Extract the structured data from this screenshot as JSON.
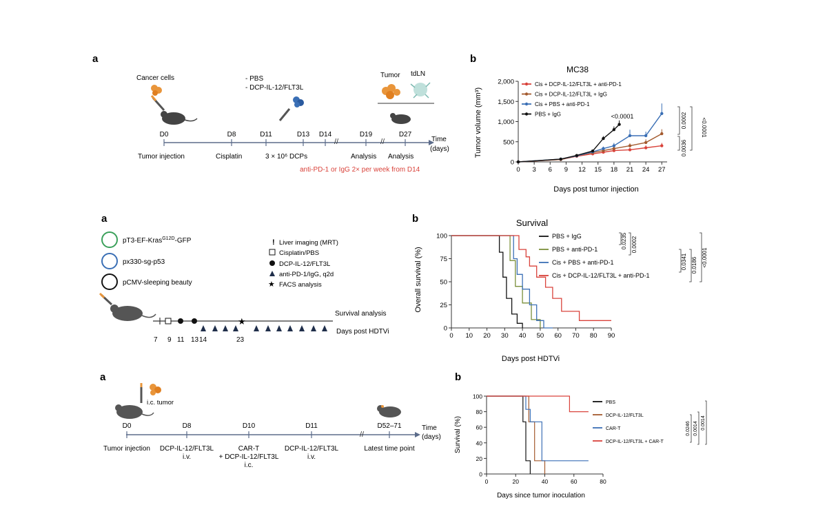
{
  "colors": {
    "red": "#d9423a",
    "brown": "#a35a2e",
    "blue": "#3a6fb5",
    "black": "#111111",
    "olive": "#7a8f3a",
    "green": "#3aa05a",
    "orange": "#e9953a",
    "teal": "#7ab8b0",
    "navy": "#1f2e4a"
  },
  "panel1": {
    "a": {
      "letter": "a",
      "cancer_label": "Cancer cells",
      "treatments": [
        "- PBS",
        "- DCP-IL-12/FLT3L"
      ],
      "tumor_label": "Tumor",
      "tdln_label": "tdLN",
      "ticks": [
        "D0",
        "D8",
        "D11",
        "D13",
        "D14",
        "D19",
        "D27"
      ],
      "axis_label": [
        "Time",
        "(days)"
      ],
      "events": [
        "Tumor injection",
        "Cisplatin",
        "3 × 10⁶ DCPs",
        "Analysis",
        "Analysis"
      ],
      "note": "anti-PD-1 or IgG 2× per week from D14"
    },
    "b": {
      "letter": "b",
      "pvals": [
        "<0.0001",
        "0.0002",
        "0.0036",
        "<0.0001"
      ]
    }
  },
  "panel2": {
    "a": {
      "letter": "a",
      "plasmids": [
        "pT3-EF-Kras",
        "G12D",
        "-GFP",
        "px330-sg-p53",
        "pCMV-sleeping beauty"
      ],
      "legend": [
        "Liver imaging (MRT)",
        "Cisplatin/PBS",
        "DCP-IL-12/FLT3L",
        "anti-PD-1/IgG, q2d",
        "FACS analysis"
      ],
      "days": [
        "7",
        "9",
        "11",
        "13",
        "14",
        "23"
      ],
      "survival_label": "Survival analysis",
      "axis_label": "Days post HDTVi"
    },
    "b": {
      "letter": "b",
      "pvals": [
        "0.0235",
        "0.0002",
        "0.0341",
        "0.0186",
        "<0.0001"
      ]
    }
  },
  "panel3": {
    "a": {
      "letter": "a",
      "tumor_label": "i.c. tumor",
      "ticks": [
        "D0",
        "D8",
        "D10",
        "D11",
        "D52–71"
      ],
      "axis_label": [
        "Time",
        "(days)"
      ],
      "events": [
        [
          "Tumor injection"
        ],
        [
          "DCP-IL-12/FLT3L",
          "i.v."
        ],
        [
          "CAR-T",
          "+ DCP-IL-12/FLT3L",
          "i.c."
        ],
        [
          "DCP-IL-12/FLT3L",
          "i.v."
        ],
        [
          "Latest time point"
        ]
      ]
    },
    "b": {
      "letter": "b",
      "pvals": [
        "0.0246",
        "0.0014",
        "0.0014"
      ]
    }
  },
  "chart_data": [
    {
      "type": "line",
      "title": "MC38",
      "xlabel": "Days post tumor injection",
      "ylabel": "Tumor volume (mm³)",
      "xlim": [
        0,
        28
      ],
      "ylim": [
        0,
        2000
      ],
      "xticks": [
        0,
        3,
        6,
        9,
        12,
        15,
        18,
        21,
        24,
        27
      ],
      "yticks": [
        0,
        500,
        1000,
        1500,
        2000
      ],
      "ytick_labels": [
        "0",
        "500",
        "1,000",
        "1,500",
        "2,000"
      ],
      "legend_position": "top-left",
      "annotation": "<0.0001",
      "series": [
        {
          "name": "Cis + DCP-IL-12/FLT3L + anti-PD-1",
          "color": "#d9423a",
          "x": [
            0,
            8,
            11,
            14,
            16,
            18,
            21,
            24,
            27
          ],
          "y": [
            0,
            60,
            140,
            200,
            240,
            280,
            300,
            350,
            400
          ],
          "err": [
            0,
            10,
            20,
            30,
            30,
            40,
            50,
            60,
            70
          ]
        },
        {
          "name": "Cis + DCP-IL-12/FLT3L + IgG",
          "color": "#a35a2e",
          "x": [
            0,
            8,
            11,
            14,
            16,
            18,
            21,
            24,
            27
          ],
          "y": [
            0,
            60,
            150,
            230,
            280,
            330,
            400,
            480,
            700
          ],
          "err": [
            0,
            10,
            20,
            30,
            40,
            50,
            60,
            80,
            110
          ]
        },
        {
          "name": "Cis + PBS + anti-PD-1",
          "color": "#3a6fb5",
          "x": [
            0,
            8,
            11,
            14,
            16,
            18,
            21,
            24,
            27
          ],
          "y": [
            0,
            70,
            150,
            250,
            330,
            400,
            650,
            650,
            1200
          ],
          "err": [
            0,
            10,
            20,
            30,
            50,
            70,
            150,
            100,
            250
          ]
        },
        {
          "name": "PBS + IgG",
          "color": "#111111",
          "x": [
            0,
            8,
            11,
            14,
            16,
            18,
            19
          ],
          "y": [
            0,
            70,
            160,
            270,
            580,
            800,
            930
          ],
          "err": [
            0,
            10,
            20,
            30,
            60,
            80,
            100
          ]
        }
      ]
    },
    {
      "type": "line",
      "title": "Survival",
      "xlabel": "Days post HDTVi",
      "ylabel": "Overall survival (%)",
      "xlim": [
        0,
        90
      ],
      "ylim": [
        0,
        100
      ],
      "xticks": [
        0,
        10,
        20,
        30,
        40,
        50,
        60,
        70,
        80,
        90
      ],
      "yticks": [
        0,
        25,
        50,
        75,
        100
      ],
      "legend_position": "top-right",
      "series": [
        {
          "name": "PBS + IgG",
          "color": "#111111",
          "x": [
            0,
            27,
            27,
            29,
            29,
            31,
            31,
            34,
            34,
            37,
            37,
            40,
            40
          ],
          "y": [
            100,
            100,
            82,
            82,
            55,
            55,
            32,
            32,
            15,
            15,
            5,
            5,
            0
          ]
        },
        {
          "name": "PBS + anti-PD-1",
          "color": "#7a8f3a",
          "x": [
            0,
            33,
            33,
            36,
            36,
            40,
            40,
            45,
            45,
            50,
            50
          ],
          "y": [
            100,
            100,
            73,
            73,
            45,
            45,
            27,
            27,
            9,
            9,
            0
          ]
        },
        {
          "name": "Cis + PBS + anti-PD-1",
          "color": "#3a6fb5",
          "x": [
            0,
            35,
            35,
            37,
            37,
            40,
            40,
            44,
            44,
            48,
            48,
            52,
            52,
            57,
            57
          ],
          "y": [
            100,
            100,
            75,
            75,
            58,
            58,
            42,
            42,
            25,
            25,
            8,
            8,
            0,
            0,
            0
          ]
        },
        {
          "name": "Cis + DCP-IL-12/FLT3L + anti-PD-1",
          "color": "#d9423a",
          "x": [
            0,
            38,
            38,
            42,
            42,
            44,
            44,
            48,
            48,
            53,
            53,
            57,
            57,
            62,
            62,
            72,
            72,
            90
          ],
          "y": [
            100,
            100,
            85,
            85,
            77,
            77,
            67,
            67,
            55,
            55,
            44,
            44,
            32,
            32,
            18,
            18,
            8,
            8
          ]
        }
      ]
    },
    {
      "type": "line",
      "xlabel": "Days since tumor inoculation",
      "ylabel": "Survival (%)",
      "xlim": [
        0,
        80
      ],
      "ylim": [
        0,
        100
      ],
      "xticks": [
        0,
        20,
        40,
        60,
        80
      ],
      "yticks": [
        0,
        20,
        40,
        60,
        80,
        100
      ],
      "legend_position": "right",
      "series": [
        {
          "name": "PBS",
          "color": "#111111",
          "x": [
            0,
            25,
            25,
            27,
            27,
            30,
            30
          ],
          "y": [
            100,
            100,
            67,
            67,
            17,
            17,
            0
          ]
        },
        {
          "name": "DCP-IL-12/FLT3L",
          "color": "#a35a2e",
          "x": [
            0,
            29,
            29,
            33,
            33,
            40,
            40
          ],
          "y": [
            100,
            100,
            67,
            67,
            17,
            17,
            0
          ]
        },
        {
          "name": "CAR-T",
          "color": "#3a6fb5",
          "x": [
            0,
            27,
            27,
            30,
            30,
            38,
            38,
            70
          ],
          "y": [
            100,
            100,
            83,
            83,
            67,
            67,
            17,
            17
          ]
        },
        {
          "name": "DCP-IL-12/FLT3L + CAR-T",
          "color": "#d9423a",
          "x": [
            0,
            57,
            57,
            70
          ],
          "y": [
            100,
            100,
            80,
            80
          ]
        }
      ]
    }
  ]
}
